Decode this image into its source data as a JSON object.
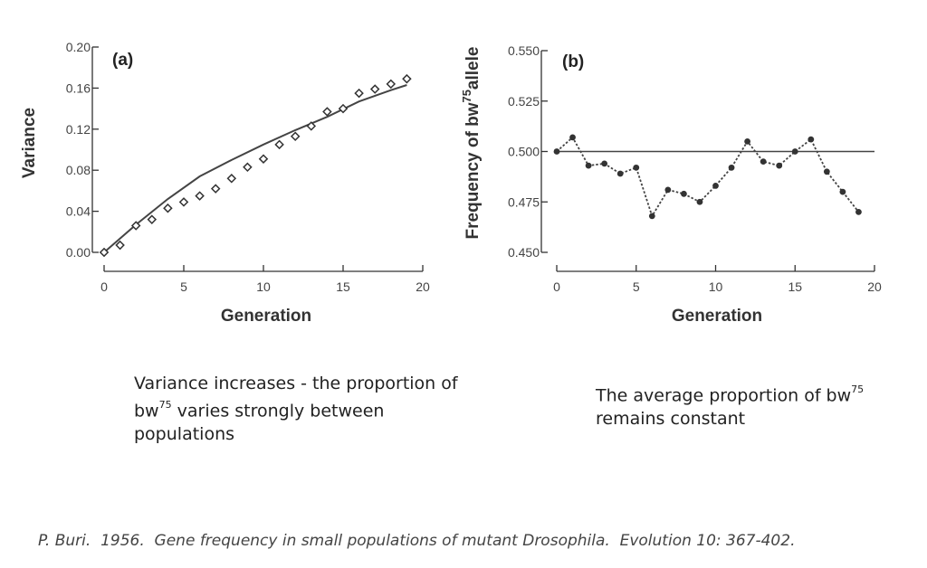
{
  "chart_data": [
    {
      "type": "line",
      "panel_label": "(a)",
      "xlabel": "Generation",
      "ylabel": "Variance",
      "xlim": [
        0,
        20
      ],
      "ylim": [
        0.0,
        0.2
      ],
      "xticks": [
        "0",
        "5",
        "10",
        "15",
        "20"
      ],
      "yticks": [
        "0.00",
        "0.04",
        "0.08",
        "0.12",
        "0.16",
        "0.20"
      ],
      "series": [
        {
          "style": "solid-line",
          "x": [
            0,
            2,
            4,
            6,
            8,
            10,
            12,
            14,
            16,
            18,
            19
          ],
          "y": [
            0.0,
            0.027,
            0.052,
            0.074,
            0.09,
            0.105,
            0.119,
            0.132,
            0.147,
            0.158,
            0.163
          ]
        },
        {
          "style": "open-diamond-markers",
          "x": [
            0,
            1,
            2,
            3,
            4,
            5,
            6,
            7,
            8,
            9,
            10,
            11,
            12,
            13,
            14,
            15,
            16,
            17,
            18,
            19
          ],
          "y": [
            0.0,
            0.007,
            0.026,
            0.032,
            0.043,
            0.049,
            0.055,
            0.062,
            0.072,
            0.083,
            0.091,
            0.105,
            0.113,
            0.123,
            0.137,
            0.14,
            0.155,
            0.159,
            0.164,
            0.169
          ]
        }
      ]
    },
    {
      "type": "line",
      "panel_label": "(b)",
      "xlabel": "Generation",
      "ylabel_main": "Frequency of bw",
      "ylabel_sup": "75",
      "ylabel_tail": "allele",
      "xlim": [
        0,
        20
      ],
      "ylim": [
        0.45,
        0.55
      ],
      "xticks": [
        "0",
        "5",
        "10",
        "15",
        "20"
      ],
      "yticks": [
        "0.450",
        "0.475",
        "0.500",
        "0.525",
        "0.550"
      ],
      "reference_line": 0.5,
      "series": [
        {
          "style": "dotted-line-with-filled-markers",
          "x": [
            0,
            1,
            2,
            3,
            4,
            5,
            6,
            7,
            8,
            9,
            10,
            11,
            12,
            13,
            14,
            15,
            16,
            17,
            18,
            19
          ],
          "y": [
            0.5,
            0.507,
            0.493,
            0.494,
            0.489,
            0.492,
            0.468,
            0.481,
            0.479,
            0.475,
            0.483,
            0.492,
            0.505,
            0.495,
            0.493,
            0.5,
            0.506,
            0.49,
            0.48,
            0.47
          ]
        }
      ]
    }
  ],
  "captions": {
    "a_part1": "Variance increases - the proportion of bw",
    "a_sup": "75",
    "a_part2": " varies strongly between populations",
    "b_part1": "The average proportion of bw",
    "b_sup": "75",
    "b_part2": " remains constant"
  },
  "citation": "P. Buri.  1956.  Gene frequency in small populations of mutant Drosophila.  Evolution 10: 367-402."
}
